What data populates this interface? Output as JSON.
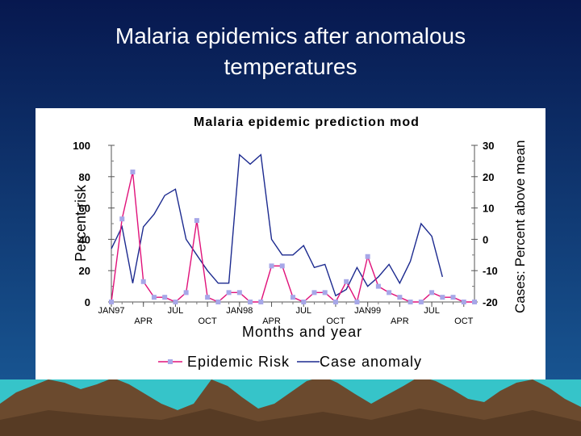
{
  "slide": {
    "title_line1": "Malaria epidemics after anomalous",
    "title_line2": "temperatures"
  },
  "colors": {
    "background_top": "#07184f",
    "background_bottom": "#1a5d9a",
    "ground": "#36c4c9",
    "mountain": "#6b4a2e",
    "risk_line": "#e0127a",
    "risk_marker": "#a7a7e8",
    "case_line": "#1c2a8f"
  },
  "chart_data": {
    "type": "line",
    "title": "Malaria epidemic prediction mod",
    "xlabel": "Months and year",
    "ylabel_left": "Percent risk",
    "ylabel_right": "Cases: Percent above mean",
    "ylim_left": [
      0,
      100
    ],
    "ylim_right": [
      -20,
      30
    ],
    "yticks_left": [
      "0",
      "20",
      "40",
      "60",
      "80",
      "100"
    ],
    "yticks_right": [
      "-20",
      "-10",
      "0",
      "10",
      "20",
      "30"
    ],
    "x_tick_labels": [
      {
        "label": "JAN97",
        "month": 0,
        "row": 1
      },
      {
        "label": "APR",
        "month": 3,
        "row": 2
      },
      {
        "label": "JUL",
        "month": 6,
        "row": 1
      },
      {
        "label": "OCT",
        "month": 9,
        "row": 2
      },
      {
        "label": "JAN98",
        "month": 12,
        "row": 1
      },
      {
        "label": "APR",
        "month": 15,
        "row": 2
      },
      {
        "label": "JUL",
        "month": 18,
        "row": 1
      },
      {
        "label": "OCT",
        "month": 21,
        "row": 2
      },
      {
        "label": "JAN99",
        "month": 24,
        "row": 1
      },
      {
        "label": "APR",
        "month": 27,
        "row": 2
      },
      {
        "label": "JUL",
        "month": 30,
        "row": 1
      },
      {
        "label": "OCT",
        "month": 33,
        "row": 2
      }
    ],
    "grid": false,
    "legend_position": "bottom",
    "series": [
      {
        "name": "Epidemic Risk",
        "axis": "left",
        "values": [
          0,
          53,
          83,
          13,
          3,
          3,
          0,
          6,
          52,
          3,
          0,
          6,
          6,
          0,
          0,
          23,
          23,
          3,
          0,
          6,
          6,
          0,
          13,
          0,
          29,
          10,
          6,
          3,
          0,
          0,
          6,
          3,
          3,
          0,
          0
        ]
      },
      {
        "name": "Case anomaly",
        "axis": "right",
        "values": [
          -3,
          4,
          -14,
          4,
          8,
          14,
          16,
          0,
          -5,
          -10,
          -14,
          -14,
          27,
          24,
          27,
          0,
          -5,
          -5,
          -2,
          -9,
          -8,
          -18,
          -16,
          -9,
          -15,
          -12,
          -8,
          -14,
          -7,
          5,
          1,
          -12
        ]
      }
    ]
  }
}
